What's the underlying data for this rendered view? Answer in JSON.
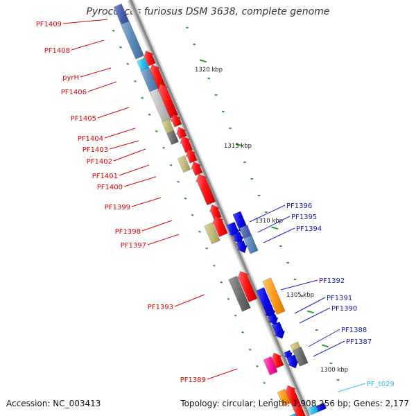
{
  "title": "Pyrococcus furiosus DSM 3638, complete genome",
  "accession": "Accession: NC_003413",
  "summary": "Topology: circular; Length: 1,908,256 bp; Genes: 2,177",
  "colors": {
    "forward": "#ff0000",
    "reverse": "#0000ee",
    "trna": "#33ccff",
    "backbone": "#888888",
    "tick": "#339933"
  },
  "scale_labels": [
    "1320 kbp",
    "1315 kbp",
    "1310 kbp",
    "1305 kbp",
    "1300 kbp"
  ],
  "left_labels": [
    "PF1409",
    "PF1408",
    "pyrH",
    "PF1406",
    "PF1405",
    "PF1404",
    "PF1403",
    "PF1402",
    "PF1401",
    "PF1400",
    "PF1399",
    "PF1398",
    "PF1397",
    "PF1393",
    "PF1389"
  ],
  "right_labels": [
    "PF1396",
    "PF1395",
    "PF1394",
    "PF1392",
    "PF1391",
    "PF1390",
    "PF1388",
    "PF1387",
    "PF_t029"
  ]
}
